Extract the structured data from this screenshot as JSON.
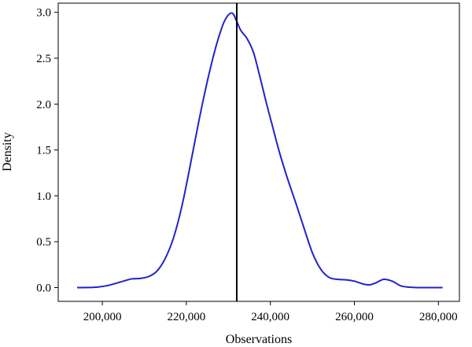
{
  "chart_data": {
    "type": "line",
    "xlabel": "Observations",
    "ylabel": "Density",
    "xlim": [
      189500,
      285000
    ],
    "ylim": [
      -0.15,
      3.1
    ],
    "x_ticks": [
      200000,
      220000,
      240000,
      260000,
      280000
    ],
    "x_tick_labels": [
      "200,000",
      "220,000",
      "240,000",
      "260,000",
      "280,000"
    ],
    "y_ticks": [
      0.0,
      0.5,
      1.0,
      1.5,
      2.0,
      2.5,
      3.0
    ],
    "y_tick_labels": [
      "0.0",
      "0.5",
      "1.0",
      "1.5",
      "2.0",
      "2.5",
      "3.0"
    ],
    "grid": false,
    "legend": "none",
    "series": [
      {
        "color": "#2222cc",
        "x": [
          194000,
          198000,
          201000,
          203500,
          205000,
          207000,
          209000,
          211000,
          213000,
          215000,
          217000,
          219000,
          221000,
          223000,
          225000,
          227000,
          228500,
          229500,
          230500,
          231200,
          232000,
          233000,
          234500,
          236000,
          237500,
          239000,
          240500,
          242000,
          244000,
          246000,
          248000,
          250000,
          252000,
          254000,
          256000,
          258000,
          260000,
          262000,
          263500,
          265000,
          267000,
          269000,
          271000,
          273000,
          275000,
          281000
        ],
        "y": [
          0.0,
          0.003,
          0.02,
          0.05,
          0.07,
          0.095,
          0.1,
          0.12,
          0.18,
          0.32,
          0.55,
          0.9,
          1.35,
          1.82,
          2.25,
          2.62,
          2.84,
          2.94,
          2.99,
          2.98,
          2.9,
          2.8,
          2.71,
          2.56,
          2.3,
          2.02,
          1.76,
          1.5,
          1.2,
          0.93,
          0.65,
          0.38,
          0.2,
          0.11,
          0.09,
          0.085,
          0.07,
          0.04,
          0.03,
          0.05,
          0.09,
          0.07,
          0.02,
          0.005,
          0.0,
          0.0
        ]
      }
    ],
    "vertical_line": {
      "x": 232000,
      "color": "#000000"
    }
  }
}
